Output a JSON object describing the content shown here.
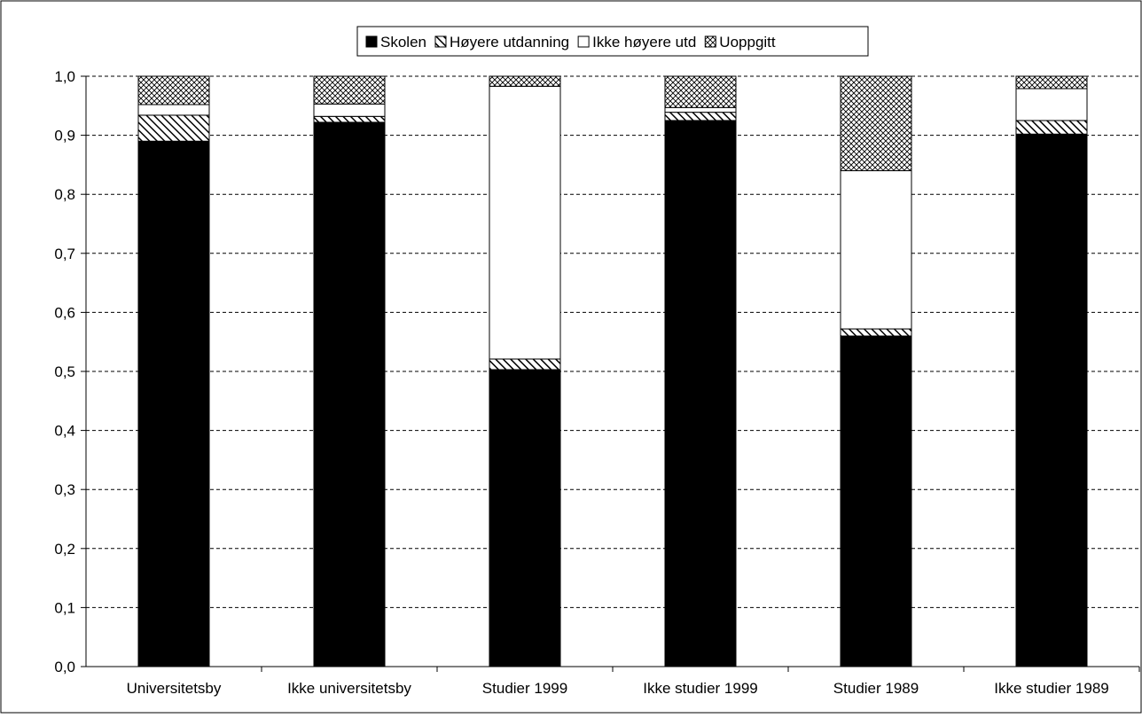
{
  "chart_data": {
    "type": "bar",
    "stacked": true,
    "categories": [
      "Universitetsby",
      "Ikke universitetsby",
      "Studier 1999",
      "Ikke studier 1999",
      "Studier 1989",
      "Ikke studier 1989"
    ],
    "series": [
      {
        "name": "Skolen",
        "values": [
          0.89,
          0.922,
          0.503,
          0.925,
          0.56,
          0.902
        ],
        "fill": "solid-black"
      },
      {
        "name": "Høyere utdanning",
        "values": [
          0.044,
          0.01,
          0.018,
          0.014,
          0.012,
          0.023
        ],
        "fill": "diagonal-hatch"
      },
      {
        "name": "Ikke høyere utd",
        "values": [
          0.018,
          0.021,
          0.462,
          0.008,
          0.268,
          0.054
        ],
        "fill": "white"
      },
      {
        "name": "Uoppgitt",
        "values": [
          0.048,
          0.047,
          0.017,
          0.053,
          0.16,
          0.021
        ],
        "fill": "crosshatch"
      }
    ],
    "title": "",
    "xlabel": "",
    "ylabel": "",
    "ylim": [
      0,
      1
    ],
    "yticks": [
      "0,0",
      "0,1",
      "0,2",
      "0,3",
      "0,4",
      "0,5",
      "0,6",
      "0,7",
      "0,8",
      "0,9",
      "1,0"
    ],
    "grid": "horizontal-dashed",
    "legend": "top-center"
  }
}
